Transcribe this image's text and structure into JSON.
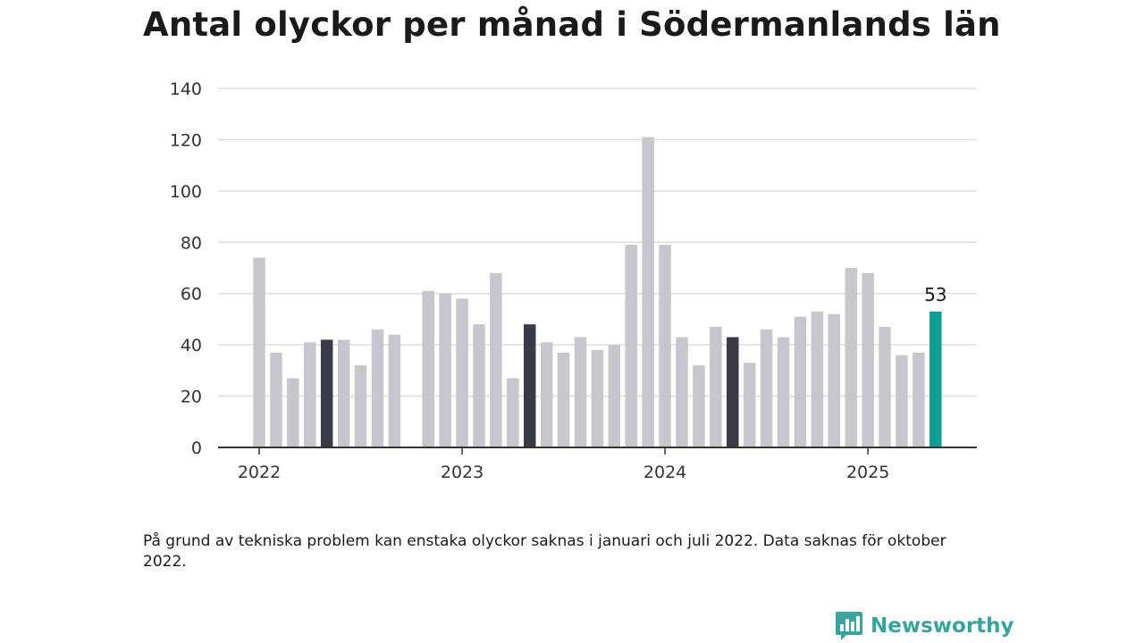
{
  "title": "Antal olyckor per månad i Södermanlands län",
  "note": "På grund av tekniska problem kan enstaka olyckor saknas i januari och juli 2022. Data saknas för oktober 2022.",
  "brand": {
    "name": "Newsworthy",
    "icon": "bar-chart-speech-bubble-icon",
    "color": "#3aa39d"
  },
  "chart_data": {
    "type": "bar",
    "title": "Antal olyckor per månad i Södermanlands län",
    "xlabel": "",
    "ylabel": "",
    "ylim": [
      0,
      140
    ],
    "yticks": [
      0,
      20,
      40,
      60,
      80,
      100,
      120,
      140
    ],
    "xtick_labels": [
      "2022",
      "2023",
      "2024",
      "2025"
    ],
    "grid": true,
    "months": [
      "2022-01",
      "2022-02",
      "2022-03",
      "2022-04",
      "2022-05",
      "2022-06",
      "2022-07",
      "2022-08",
      "2022-09",
      "2022-10",
      "2022-11",
      "2022-12",
      "2023-01",
      "2023-02",
      "2023-03",
      "2023-04",
      "2023-05",
      "2023-06",
      "2023-07",
      "2023-08",
      "2023-09",
      "2023-10",
      "2023-11",
      "2023-12",
      "2024-01",
      "2024-02",
      "2024-03",
      "2024-04",
      "2024-05",
      "2024-06",
      "2024-07",
      "2024-08",
      "2024-09",
      "2024-10",
      "2024-11",
      "2024-12",
      "2025-01",
      "2025-02",
      "2025-03",
      "2025-04",
      "2025-05"
    ],
    "values": [
      74,
      37,
      27,
      41,
      42,
      42,
      32,
      46,
      44,
      null,
      61,
      60,
      58,
      48,
      68,
      27,
      48,
      41,
      37,
      43,
      38,
      40,
      79,
      121,
      79,
      43,
      32,
      47,
      43,
      33,
      46,
      43,
      51,
      53,
      52,
      70,
      68,
      47,
      36,
      37,
      53
    ],
    "highlight_months": [
      "2022-05",
      "2023-05",
      "2024-05"
    ],
    "current_month": "2025-05",
    "current_label": "53",
    "colors": {
      "default": "#c7c6cd",
      "highlight": "#3b3a47",
      "current": "#0f9e95",
      "grid": "#dddddd",
      "axis": "#333333"
    }
  }
}
